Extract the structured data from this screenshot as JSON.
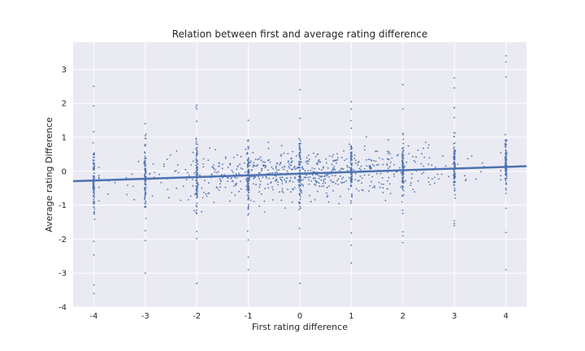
{
  "chart_data": {
    "type": "scatter",
    "title": "Relation between first and average rating difference",
    "xlabel": "First rating difference",
    "ylabel": "Average rating Difference",
    "xlim": [
      -4.4,
      4.4
    ],
    "ylim": [
      -4,
      3.8
    ],
    "xticks": [
      -4,
      -3,
      -2,
      -1,
      0,
      1,
      2,
      3,
      4
    ],
    "yticks": [
      -4,
      -3,
      -2,
      -1,
      0,
      1,
      2,
      3
    ],
    "grid": true,
    "style": "seaborn-darkgrid",
    "colors": {
      "background": "#eaeaf2",
      "grid": "#ffffff",
      "points": "#4c72b0",
      "line": "#4c72b0"
    },
    "regression_line": {
      "slope": 0.05,
      "intercept": -0.07,
      "x_range": [
        -4.4,
        4.4
      ]
    },
    "columns": [
      {
        "x": -4,
        "ymin": -3.6,
        "ymax": 2.5,
        "spread": 0.8,
        "center": -0.3
      },
      {
        "x": -3,
        "ymin": -3.0,
        "ymax": 1.4,
        "spread": 0.7,
        "center": -0.2
      },
      {
        "x": -2,
        "ymin": -3.3,
        "ymax": 1.95,
        "spread": 0.75,
        "center": -0.1
      },
      {
        "x": -1,
        "ymin": -2.9,
        "ymax": 1.5,
        "spread": 0.7,
        "center": -0.1
      },
      {
        "x": 0,
        "ymin": -3.3,
        "ymax": 2.4,
        "spread": 0.7,
        "center": -0.05
      },
      {
        "x": 1,
        "ymin": -2.7,
        "ymax": 2.05,
        "spread": 0.65,
        "center": 0.0
      },
      {
        "x": 2,
        "ymin": -2.1,
        "ymax": 2.55,
        "spread": 0.6,
        "center": 0.05
      },
      {
        "x": 3,
        "ymin": -1.6,
        "ymax": 2.75,
        "spread": 0.55,
        "center": 0.1
      },
      {
        "x": 4,
        "ymin": -2.9,
        "ymax": 3.4,
        "spread": 0.55,
        "center": 0.15
      }
    ],
    "cloud_points": 700,
    "column_points": 90
  }
}
